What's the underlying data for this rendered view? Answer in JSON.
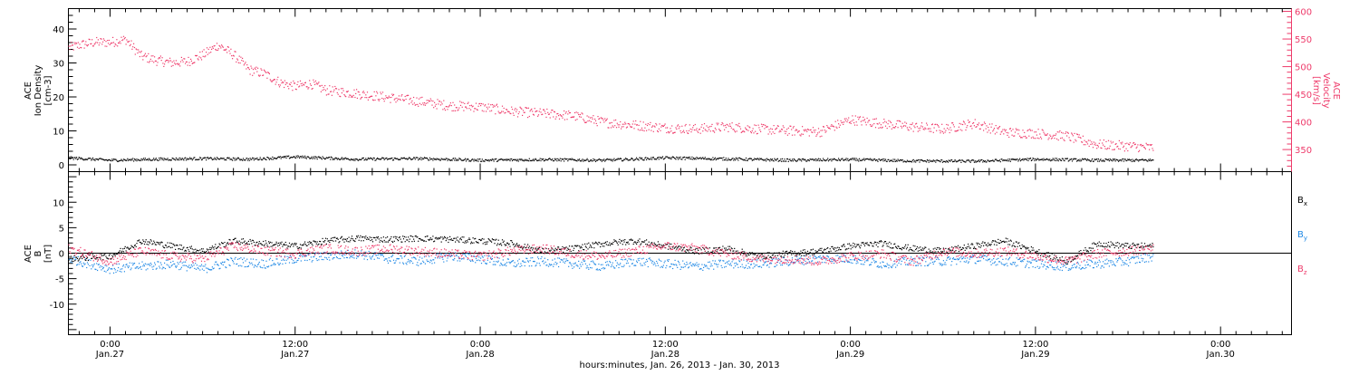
{
  "colors": {
    "black": "#000000",
    "pink": "#ee3a6a",
    "blue": "#1e88e5"
  },
  "xaxis": {
    "title": "hours:minutes, Jan. 26, 2013 - Jan. 30, 2013",
    "ticks": [
      {
        "time": "0:00",
        "date": "Jan.27",
        "hours": 24
      },
      {
        "time": "12:00",
        "date": "Jan.27",
        "hours": 36
      },
      {
        "time": "0:00",
        "date": "Jan.28",
        "hours": 48
      },
      {
        "time": "12:00",
        "date": "Jan.28",
        "hours": 60
      },
      {
        "time": "0:00",
        "date": "Jan.29",
        "hours": 72
      },
      {
        "time": "12:00",
        "date": "Jan.29",
        "hours": 84
      },
      {
        "time": "0:00",
        "date": "Jan.30",
        "hours": 96
      }
    ]
  },
  "chart_data": [
    {
      "type": "scatter",
      "panel": "plasma",
      "xlim_hours": [
        21.3,
        100.6
      ],
      "xlabel": "hours:minutes, Jan. 26, 2013 - Jan. 30, 2013",
      "ylabel_left": [
        "ACE",
        "Ion Density",
        "[cm-3]"
      ],
      "ylabel_right": [
        "ACE",
        "Velocity",
        "[km/s]"
      ],
      "ylim_left": [
        -2,
        46
      ],
      "yticks_left": [
        0,
        10,
        20,
        30,
        40
      ],
      "ylim_right": [
        310,
        605
      ],
      "yticks_right": [
        350,
        400,
        450,
        500,
        550,
        600
      ],
      "series": [
        {
          "axis": "left",
          "color": "#000000",
          "x_hours": [
            21.3,
            24,
            27,
            30,
            33,
            36,
            40,
            44,
            48,
            52,
            56,
            60,
            64,
            68,
            72,
            76,
            80,
            84,
            88,
            91.6
          ],
          "values": [
            2.2,
            1.5,
            1.8,
            2.0,
            1.8,
            2.5,
            1.8,
            2.0,
            1.5,
            1.7,
            1.5,
            2.2,
            1.9,
            1.5,
            1.7,
            1.3,
            1.2,
            1.8,
            1.5,
            1.5
          ]
        },
        {
          "axis": "right",
          "color": "#ee3a6a",
          "x_hours": [
            21.3,
            22,
            23,
            24,
            25,
            26,
            27,
            28,
            29,
            30,
            31,
            32,
            33,
            34,
            35,
            36,
            37,
            38,
            40,
            42,
            44,
            46,
            48,
            50,
            52,
            54,
            56,
            58,
            60,
            62,
            64,
            66,
            68,
            70,
            72,
            74,
            76,
            78,
            80,
            82,
            84,
            86,
            88,
            90,
            91.6
          ],
          "values": [
            535,
            540,
            545,
            545,
            550,
            520,
            512,
            508,
            510,
            522,
            540,
            522,
            495,
            488,
            472,
            465,
            470,
            458,
            452,
            445,
            438,
            430,
            428,
            420,
            416,
            412,
            400,
            395,
            390,
            388,
            392,
            388,
            385,
            383,
            405,
            398,
            392,
            388,
            398,
            382,
            380,
            375,
            360,
            357,
            354
          ]
        }
      ]
    },
    {
      "type": "scatter",
      "panel": "magnetic-field",
      "xlim_hours": [
        21.3,
        100.6
      ],
      "ylabel": [
        "ACE",
        "B",
        "[nT]"
      ],
      "ylim": [
        -16,
        16
      ],
      "yticks": [
        -10,
        -5,
        0,
        5,
        10
      ],
      "series": [
        {
          "name": "Bx",
          "color": "#000000",
          "x_hours": [
            21.3,
            24,
            26,
            28,
            30,
            32,
            34,
            36,
            38,
            40,
            42,
            44,
            46,
            48,
            50,
            52,
            54,
            56,
            58,
            60,
            62,
            64,
            66,
            68,
            70,
            72,
            74,
            76,
            78,
            80,
            82,
            84,
            86,
            88,
            90,
            91.6
          ],
          "values": [
            -1.0,
            -0.5,
            2.5,
            1.5,
            0.5,
            2.5,
            2.0,
            1.5,
            2.5,
            3.0,
            2.8,
            3.0,
            2.8,
            2.5,
            2.0,
            0.5,
            1.0,
            2.0,
            2.5,
            1.5,
            0.5,
            1.0,
            -0.5,
            0.0,
            0.5,
            1.5,
            2.0,
            1.0,
            0.5,
            1.5,
            2.5,
            0.5,
            -1.5,
            2.0,
            1.5,
            1.5
          ]
        },
        {
          "name": "By",
          "color": "#1e88e5",
          "x_hours": [
            21.3,
            24,
            26,
            28,
            30,
            32,
            34,
            36,
            38,
            40,
            42,
            44,
            46,
            48,
            50,
            52,
            54,
            56,
            58,
            60,
            62,
            64,
            66,
            68,
            70,
            72,
            74,
            76,
            78,
            80,
            82,
            84,
            86,
            88,
            90,
            91.6
          ],
          "values": [
            -1.0,
            -3.0,
            -2.5,
            -2.0,
            -3.0,
            -1.5,
            -2.0,
            -1.0,
            -0.5,
            0.0,
            -1.0,
            -1.5,
            -0.5,
            -1.0,
            -2.0,
            -1.5,
            -2.0,
            -2.5,
            -1.5,
            -2.0,
            -2.5,
            -2.0,
            -2.0,
            -1.5,
            -1.0,
            -1.0,
            -2.0,
            -1.5,
            -1.5,
            -1.0,
            -1.5,
            -2.0,
            -2.5,
            -2.0,
            -1.5,
            -0.5
          ]
        },
        {
          "name": "Bz",
          "color": "#ee3a6a",
          "x_hours": [
            21.3,
            24,
            26,
            28,
            30,
            32,
            34,
            36,
            38,
            40,
            42,
            44,
            46,
            48,
            50,
            52,
            54,
            56,
            58,
            60,
            62,
            64,
            66,
            68,
            70,
            72,
            74,
            76,
            78,
            80,
            82,
            84,
            86,
            88,
            90,
            91.6
          ],
          "values": [
            1.0,
            -1.5,
            0.5,
            -0.5,
            -1.0,
            1.5,
            0.5,
            0.0,
            1.0,
            0.5,
            1.0,
            0.5,
            0.0,
            -0.5,
            0.5,
            1.0,
            0.0,
            -0.5,
            0.5,
            1.5,
            1.0,
            0.0,
            -1.0,
            -1.0,
            -1.5,
            -0.5,
            0.0,
            -1.5,
            0.5,
            0.0,
            0.5,
            -0.5,
            -1.5,
            0.0,
            0.5,
            1.0
          ]
        }
      ]
    }
  ]
}
